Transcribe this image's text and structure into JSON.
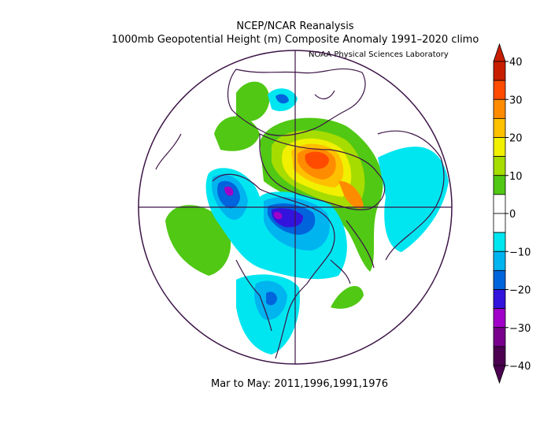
{
  "title_line1": "NCEP/NCAR Reanalysis",
  "title_line2": "1000mb Geopotential Height (m) Composite Anomaly 1991–2020 climo",
  "credit": "NOAA Physical Sciences Laboratory",
  "period": "Mar to May: 2011,1996,1991,1976",
  "colorbar": {
    "ticks": [
      "40",
      "30",
      "20",
      "10",
      "0",
      "−10",
      "−20",
      "−30",
      "−40"
    ],
    "colors": {
      "c40": "#c81e00",
      "c35": "#ff4b00",
      "c30": "#ff8c00",
      "c25": "#ffc000",
      "c20": "#f0f000",
      "c15": "#a6dc00",
      "c10": "#50c814",
      "c5": "#ffffff",
      "n5": "#ffffff",
      "n10": "#00e6f0",
      "n15": "#00b4f0",
      "n20": "#0064dc",
      "n25": "#3214dc",
      "n30": "#a000c8",
      "n35": "#78008c",
      "n40": "#4b0050"
    }
  },
  "map": {
    "projection": "north polar stereographic",
    "border_color": "#3c1446"
  }
}
